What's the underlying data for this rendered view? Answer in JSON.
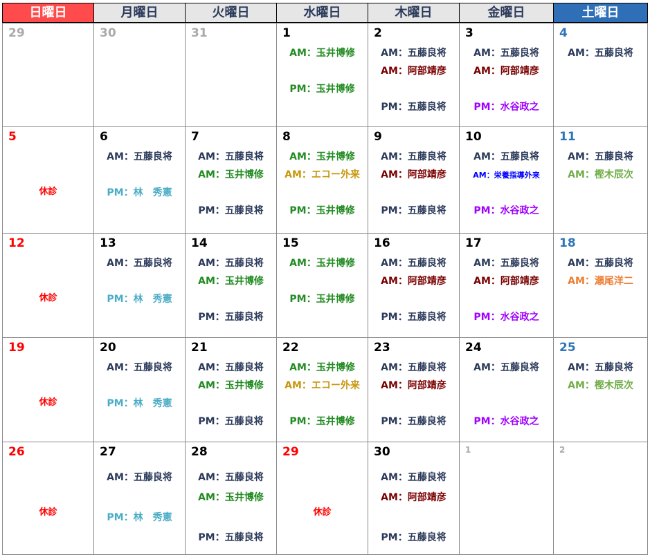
{
  "weekdays": [
    "日曜日",
    "月曜日",
    "火曜日",
    "水曜日",
    "木曜日",
    "金曜日",
    "土曜日"
  ],
  "colors": {
    "goto": "#2b3a5a",
    "abe": "#7a0000",
    "tamai": "#228b22",
    "echo": "#c8960c",
    "nutrition": "#0000ff",
    "mizutani": "#a000ff",
    "kashinoki": "#70ad47",
    "seo": "#ed7d31",
    "hayashi": "#4bacc6",
    "closed": "#ff0000",
    "sunday_header": "#ff4b4b",
    "saturday_header": "#2e6fb7"
  },
  "weeks": [
    [
      {
        "day": "29",
        "type": "other"
      },
      {
        "day": "30",
        "type": "other"
      },
      {
        "day": "31",
        "type": "other"
      },
      {
        "day": "1",
        "entries": [
          {
            "text": "AM：玉井博修",
            "c": "tamai",
            "slot": 1
          },
          {
            "text": "PM：玉井博修",
            "c": "tamai",
            "slot": 3
          }
        ]
      },
      {
        "day": "2",
        "entries": [
          {
            "text": "AM：五藤良将",
            "c": "goto",
            "slot": 1
          },
          {
            "text": "AM：阿部靖彦",
            "c": "abe",
            "slot": 2
          },
          {
            "text": "PM：五藤良将",
            "c": "goto",
            "slot": 4
          }
        ]
      },
      {
        "day": "3",
        "entries": [
          {
            "text": "AM：五藤良将",
            "c": "goto",
            "slot": 1
          },
          {
            "text": "AM：阿部靖彦",
            "c": "abe",
            "slot": 2
          },
          {
            "text": "PM：水谷政之",
            "c": "mizutani",
            "slot": 4
          }
        ]
      },
      {
        "day": "4",
        "type": "sat",
        "entries": [
          {
            "text": "AM：五藤良将",
            "c": "goto",
            "slot": 1
          }
        ]
      }
    ],
    [
      {
        "day": "5",
        "type": "sun",
        "closed": "休診"
      },
      {
        "day": "6",
        "entries": [
          {
            "text": "AM：五藤良将",
            "c": "goto",
            "slot": 1
          },
          {
            "text": "PM：林　秀憲",
            "c": "hayashi",
            "slot": 3
          }
        ]
      },
      {
        "day": "7",
        "entries": [
          {
            "text": "AM：五藤良将",
            "c": "goto",
            "slot": 1
          },
          {
            "text": "AM：玉井博修",
            "c": "tamai",
            "slot": 2
          },
          {
            "text": "PM：五藤良将",
            "c": "goto",
            "slot": 4
          }
        ]
      },
      {
        "day": "8",
        "entries": [
          {
            "text": "AM：玉井博修",
            "c": "tamai",
            "slot": 1
          },
          {
            "text": "AM：エコー外来",
            "c": "echo",
            "slot": 2
          },
          {
            "text": "PM：玉井博修",
            "c": "tamai",
            "slot": 4
          }
        ]
      },
      {
        "day": "9",
        "entries": [
          {
            "text": "AM：五藤良将",
            "c": "goto",
            "slot": 1
          },
          {
            "text": "AM：阿部靖彦",
            "c": "abe",
            "slot": 2
          },
          {
            "text": "PM：五藤良将",
            "c": "goto",
            "slot": 4
          }
        ]
      },
      {
        "day": "10",
        "entries": [
          {
            "text": "AM：五藤良将",
            "c": "goto",
            "slot": 1
          },
          {
            "text": "AM：栄養指導外来",
            "c": "nutrition",
            "slot": 2,
            "small": true
          },
          {
            "text": "PM：水谷政之",
            "c": "mizutani",
            "slot": 4
          }
        ]
      },
      {
        "day": "11",
        "type": "sat",
        "entries": [
          {
            "text": "AM：五藤良将",
            "c": "goto",
            "slot": 1
          },
          {
            "text": "AM：樫木辰次",
            "c": "kashinoki",
            "slot": 2
          }
        ]
      }
    ],
    [
      {
        "day": "12",
        "type": "sun",
        "closed": "休診"
      },
      {
        "day": "13",
        "entries": [
          {
            "text": "AM：五藤良将",
            "c": "goto",
            "slot": 1
          },
          {
            "text": "PM：林　秀憲",
            "c": "hayashi",
            "slot": 3
          }
        ]
      },
      {
        "day": "14",
        "entries": [
          {
            "text": "AM：五藤良将",
            "c": "goto",
            "slot": 1
          },
          {
            "text": "AM：玉井博修",
            "c": "tamai",
            "slot": 2
          },
          {
            "text": "PM：五藤良将",
            "c": "goto",
            "slot": 4
          }
        ]
      },
      {
        "day": "15",
        "entries": [
          {
            "text": "AM：玉井博修",
            "c": "tamai",
            "slot": 1
          },
          {
            "text": "PM：玉井博修",
            "c": "tamai",
            "slot": 3
          }
        ]
      },
      {
        "day": "16",
        "entries": [
          {
            "text": "AM：五藤良将",
            "c": "goto",
            "slot": 1
          },
          {
            "text": "AM：阿部靖彦",
            "c": "abe",
            "slot": 2
          },
          {
            "text": "PM：五藤良将",
            "c": "goto",
            "slot": 4
          }
        ]
      },
      {
        "day": "17",
        "entries": [
          {
            "text": "AM：五藤良将",
            "c": "goto",
            "slot": 1
          },
          {
            "text": "AM：阿部靖彦",
            "c": "abe",
            "slot": 2
          },
          {
            "text": "PM：水谷政之",
            "c": "mizutani",
            "slot": 4
          }
        ]
      },
      {
        "day": "18",
        "type": "sat",
        "entries": [
          {
            "text": "AM：五藤良将",
            "c": "goto",
            "slot": 1
          },
          {
            "text": "AM：瀬尾洋二",
            "c": "seo",
            "slot": 2
          }
        ]
      }
    ],
    [
      {
        "day": "19",
        "type": "sun",
        "closed": "休診"
      },
      {
        "day": "20",
        "entries": [
          {
            "text": "AM：五藤良将",
            "c": "goto",
            "slot": 1
          },
          {
            "text": "PM：林　秀憲",
            "c": "hayashi",
            "slot": 3
          }
        ]
      },
      {
        "day": "21",
        "entries": [
          {
            "text": "AM：五藤良将",
            "c": "goto",
            "slot": 1
          },
          {
            "text": "AM：玉井博修",
            "c": "tamai",
            "slot": 2
          },
          {
            "text": "PM：五藤良将",
            "c": "goto",
            "slot": 4
          }
        ]
      },
      {
        "day": "22",
        "entries": [
          {
            "text": "AM：玉井博修",
            "c": "tamai",
            "slot": 1
          },
          {
            "text": "AM：エコー外来",
            "c": "echo",
            "slot": 2
          },
          {
            "text": "PM：玉井博修",
            "c": "tamai",
            "slot": 4
          }
        ]
      },
      {
        "day": "23",
        "entries": [
          {
            "text": "AM：五藤良将",
            "c": "goto",
            "slot": 1
          },
          {
            "text": "AM：阿部靖彦",
            "c": "abe",
            "slot": 2
          },
          {
            "text": "PM：五藤良将",
            "c": "goto",
            "slot": 4
          }
        ]
      },
      {
        "day": "24",
        "entries": [
          {
            "text": "AM：五藤良将",
            "c": "goto",
            "slot": 1
          },
          {
            "text": "PM：水谷政之",
            "c": "mizutani",
            "slot": 4
          }
        ]
      },
      {
        "day": "25",
        "type": "sat",
        "entries": [
          {
            "text": "AM：五藤良将",
            "c": "goto",
            "slot": 1
          },
          {
            "text": "AM：樫木辰次",
            "c": "kashinoki",
            "slot": 2
          }
        ]
      }
    ],
    [
      {
        "day": "26",
        "type": "sun",
        "closed": "休診"
      },
      {
        "day": "27",
        "entries": [
          {
            "text": "AM：五藤良将",
            "c": "goto",
            "slot": 1
          },
          {
            "text": "PM：林　秀憲",
            "c": "hayashi",
            "slot": 3
          }
        ]
      },
      {
        "day": "28",
        "entries": [
          {
            "text": "AM：五藤良将",
            "c": "goto",
            "slot": 1
          },
          {
            "text": "AM：玉井博修",
            "c": "tamai",
            "slot": 2
          },
          {
            "text": "PM：五藤良将",
            "c": "goto",
            "slot": 4
          }
        ]
      },
      {
        "day": "29",
        "type": "sun",
        "closed": "休診"
      },
      {
        "day": "30",
        "entries": [
          {
            "text": "AM：五藤良将",
            "c": "goto",
            "slot": 1
          },
          {
            "text": "AM：阿部靖彦",
            "c": "abe",
            "slot": 2
          },
          {
            "text": "PM：五藤良将",
            "c": "goto",
            "slot": 4
          }
        ]
      },
      {
        "day": "1",
        "type": "other small"
      },
      {
        "day": "2",
        "type": "other small"
      }
    ]
  ]
}
